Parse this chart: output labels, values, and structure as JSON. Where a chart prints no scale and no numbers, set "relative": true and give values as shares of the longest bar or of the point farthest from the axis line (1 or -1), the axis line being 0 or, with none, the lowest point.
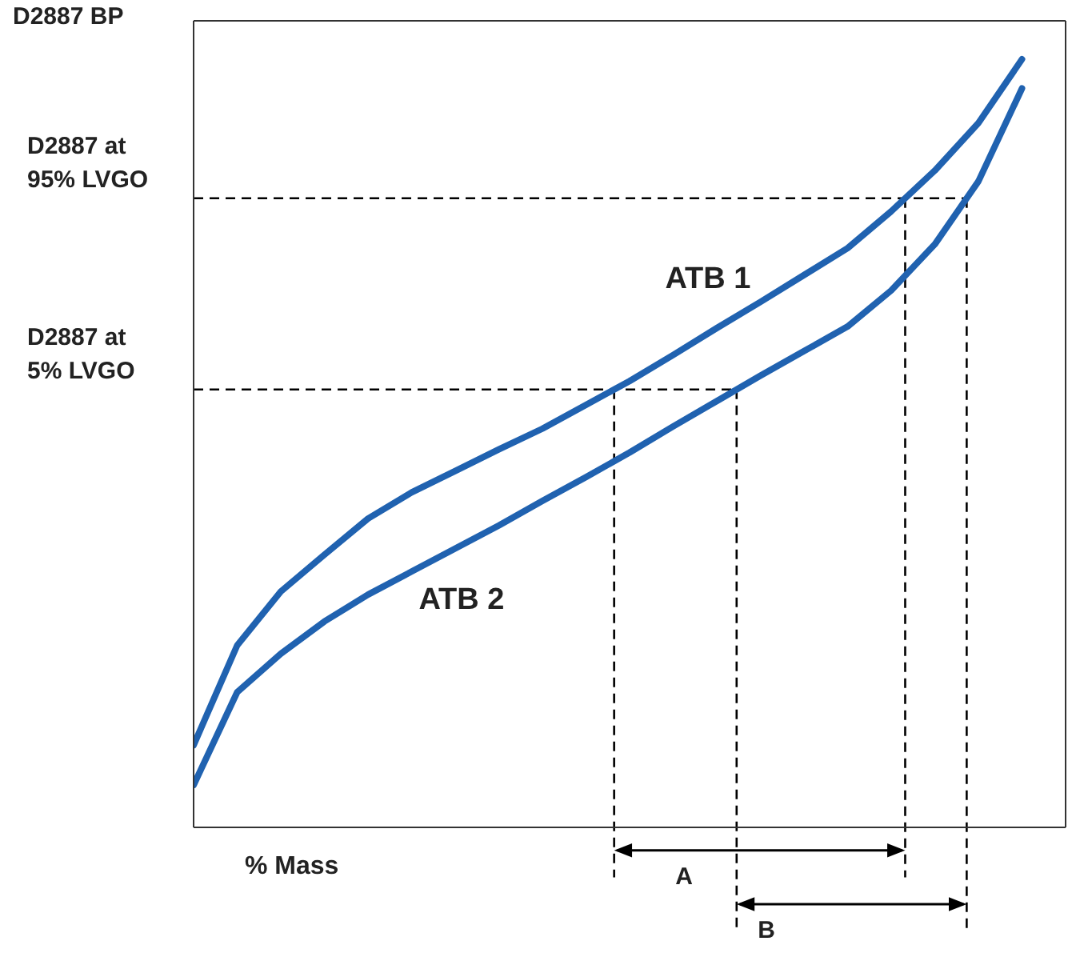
{
  "chart_data": {
    "type": "line",
    "relative": true,
    "ylabel": "D2887 BP",
    "xlabel": "% Mass",
    "categories": [
      null,
      null,
      null,
      null,
      null,
      null,
      null,
      null,
      null,
      null,
      null,
      null,
      null,
      null,
      null,
      null,
      null,
      null,
      null,
      null
    ],
    "marker": "none",
    "line_style": "solid",
    "series": [
      {
        "name": "ATB 1",
        "color": "#2062b0",
        "values": [
          0.107,
          0.237,
          0.307,
          0.355,
          0.402,
          0.436,
          0.464,
          0.492,
          0.519,
          0.55,
          0.581,
          0.615,
          0.65,
          0.684,
          0.719,
          0.754,
          0.802,
          0.855,
          0.917,
          1
        ]
      },
      {
        "name": "ATB 2",
        "color": "#2062b0",
        "values": [
          0.055,
          0.176,
          0.226,
          0.268,
          0.303,
          0.333,
          0.363,
          0.393,
          0.425,
          0.456,
          0.488,
          0.522,
          0.555,
          0.588,
          0.62,
          0.652,
          0.699,
          0.759,
          0.841,
          0.962
        ]
      }
    ],
    "ref_lines": [
      {
        "axis": "y",
        "value": 0.819,
        "label": "D2887 at 95% LVGO",
        "line_style": "dashed",
        "color": "#000000"
      },
      {
        "axis": "y",
        "value": 0.57,
        "label": "D2887 at 5% LVGO",
        "line_style": "dashed",
        "color": "#000000"
      }
    ],
    "annotations": [
      "A",
      "B"
    ]
  }
}
